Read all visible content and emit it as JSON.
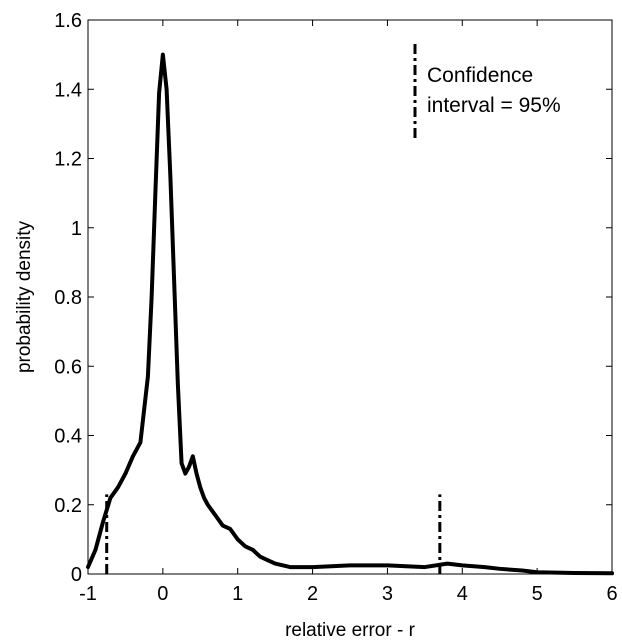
{
  "chart_data": {
    "type": "line",
    "title": "",
    "xlabel": "relative error - r",
    "ylabel": "probability density",
    "xlim": [
      -1,
      6
    ],
    "ylim": [
      0,
      1.6
    ],
    "x_ticks": [
      -1,
      0,
      1,
      2,
      3,
      4,
      5,
      6
    ],
    "x_tick_labels": [
      "-1",
      "0",
      "1",
      "2",
      "3",
      "4",
      "5",
      "6"
    ],
    "y_ticks": [
      0,
      0.2,
      0.4,
      0.6,
      0.8,
      1.0,
      1.2,
      1.4,
      1.6
    ],
    "y_tick_labels": [
      "0",
      "0.2",
      "0.4",
      "0.6",
      "0.8",
      "1",
      "1.2",
      "1.4",
      "1.6"
    ],
    "grid": false,
    "legend_placement": "top-right",
    "legend": {
      "line1": "Confidence",
      "line2": "interval = 95%",
      "style": "dash-dot"
    },
    "series": [
      {
        "style": "solid",
        "color": "#000000",
        "x": [
          -1.0,
          -0.9,
          -0.8,
          -0.7,
          -0.6,
          -0.5,
          -0.4,
          -0.3,
          -0.2,
          -0.15,
          -0.1,
          -0.05,
          0.0,
          0.05,
          0.1,
          0.15,
          0.2,
          0.25,
          0.3,
          0.35,
          0.4,
          0.45,
          0.5,
          0.55,
          0.6,
          0.7,
          0.8,
          0.9,
          1.0,
          1.1,
          1.2,
          1.3,
          1.4,
          1.5,
          1.7,
          2.0,
          2.5,
          3.0,
          3.5,
          3.8,
          4.0,
          4.3,
          4.5,
          4.8,
          5.0,
          5.5,
          6.0
        ],
        "y": [
          0.02,
          0.07,
          0.15,
          0.22,
          0.25,
          0.29,
          0.34,
          0.38,
          0.57,
          0.8,
          1.1,
          1.39,
          1.5,
          1.4,
          1.15,
          0.85,
          0.55,
          0.32,
          0.29,
          0.31,
          0.34,
          0.29,
          0.25,
          0.22,
          0.2,
          0.17,
          0.14,
          0.13,
          0.1,
          0.08,
          0.07,
          0.05,
          0.04,
          0.03,
          0.02,
          0.02,
          0.025,
          0.025,
          0.02,
          0.03,
          0.025,
          0.02,
          0.015,
          0.01,
          0.005,
          0.003,
          0.002
        ]
      }
    ],
    "confidence_bounds": [
      {
        "x": -0.75,
        "y_range": [
          0,
          0.23
        ]
      },
      {
        "x": 3.7,
        "y_range": [
          0,
          0.23
        ]
      }
    ]
  }
}
